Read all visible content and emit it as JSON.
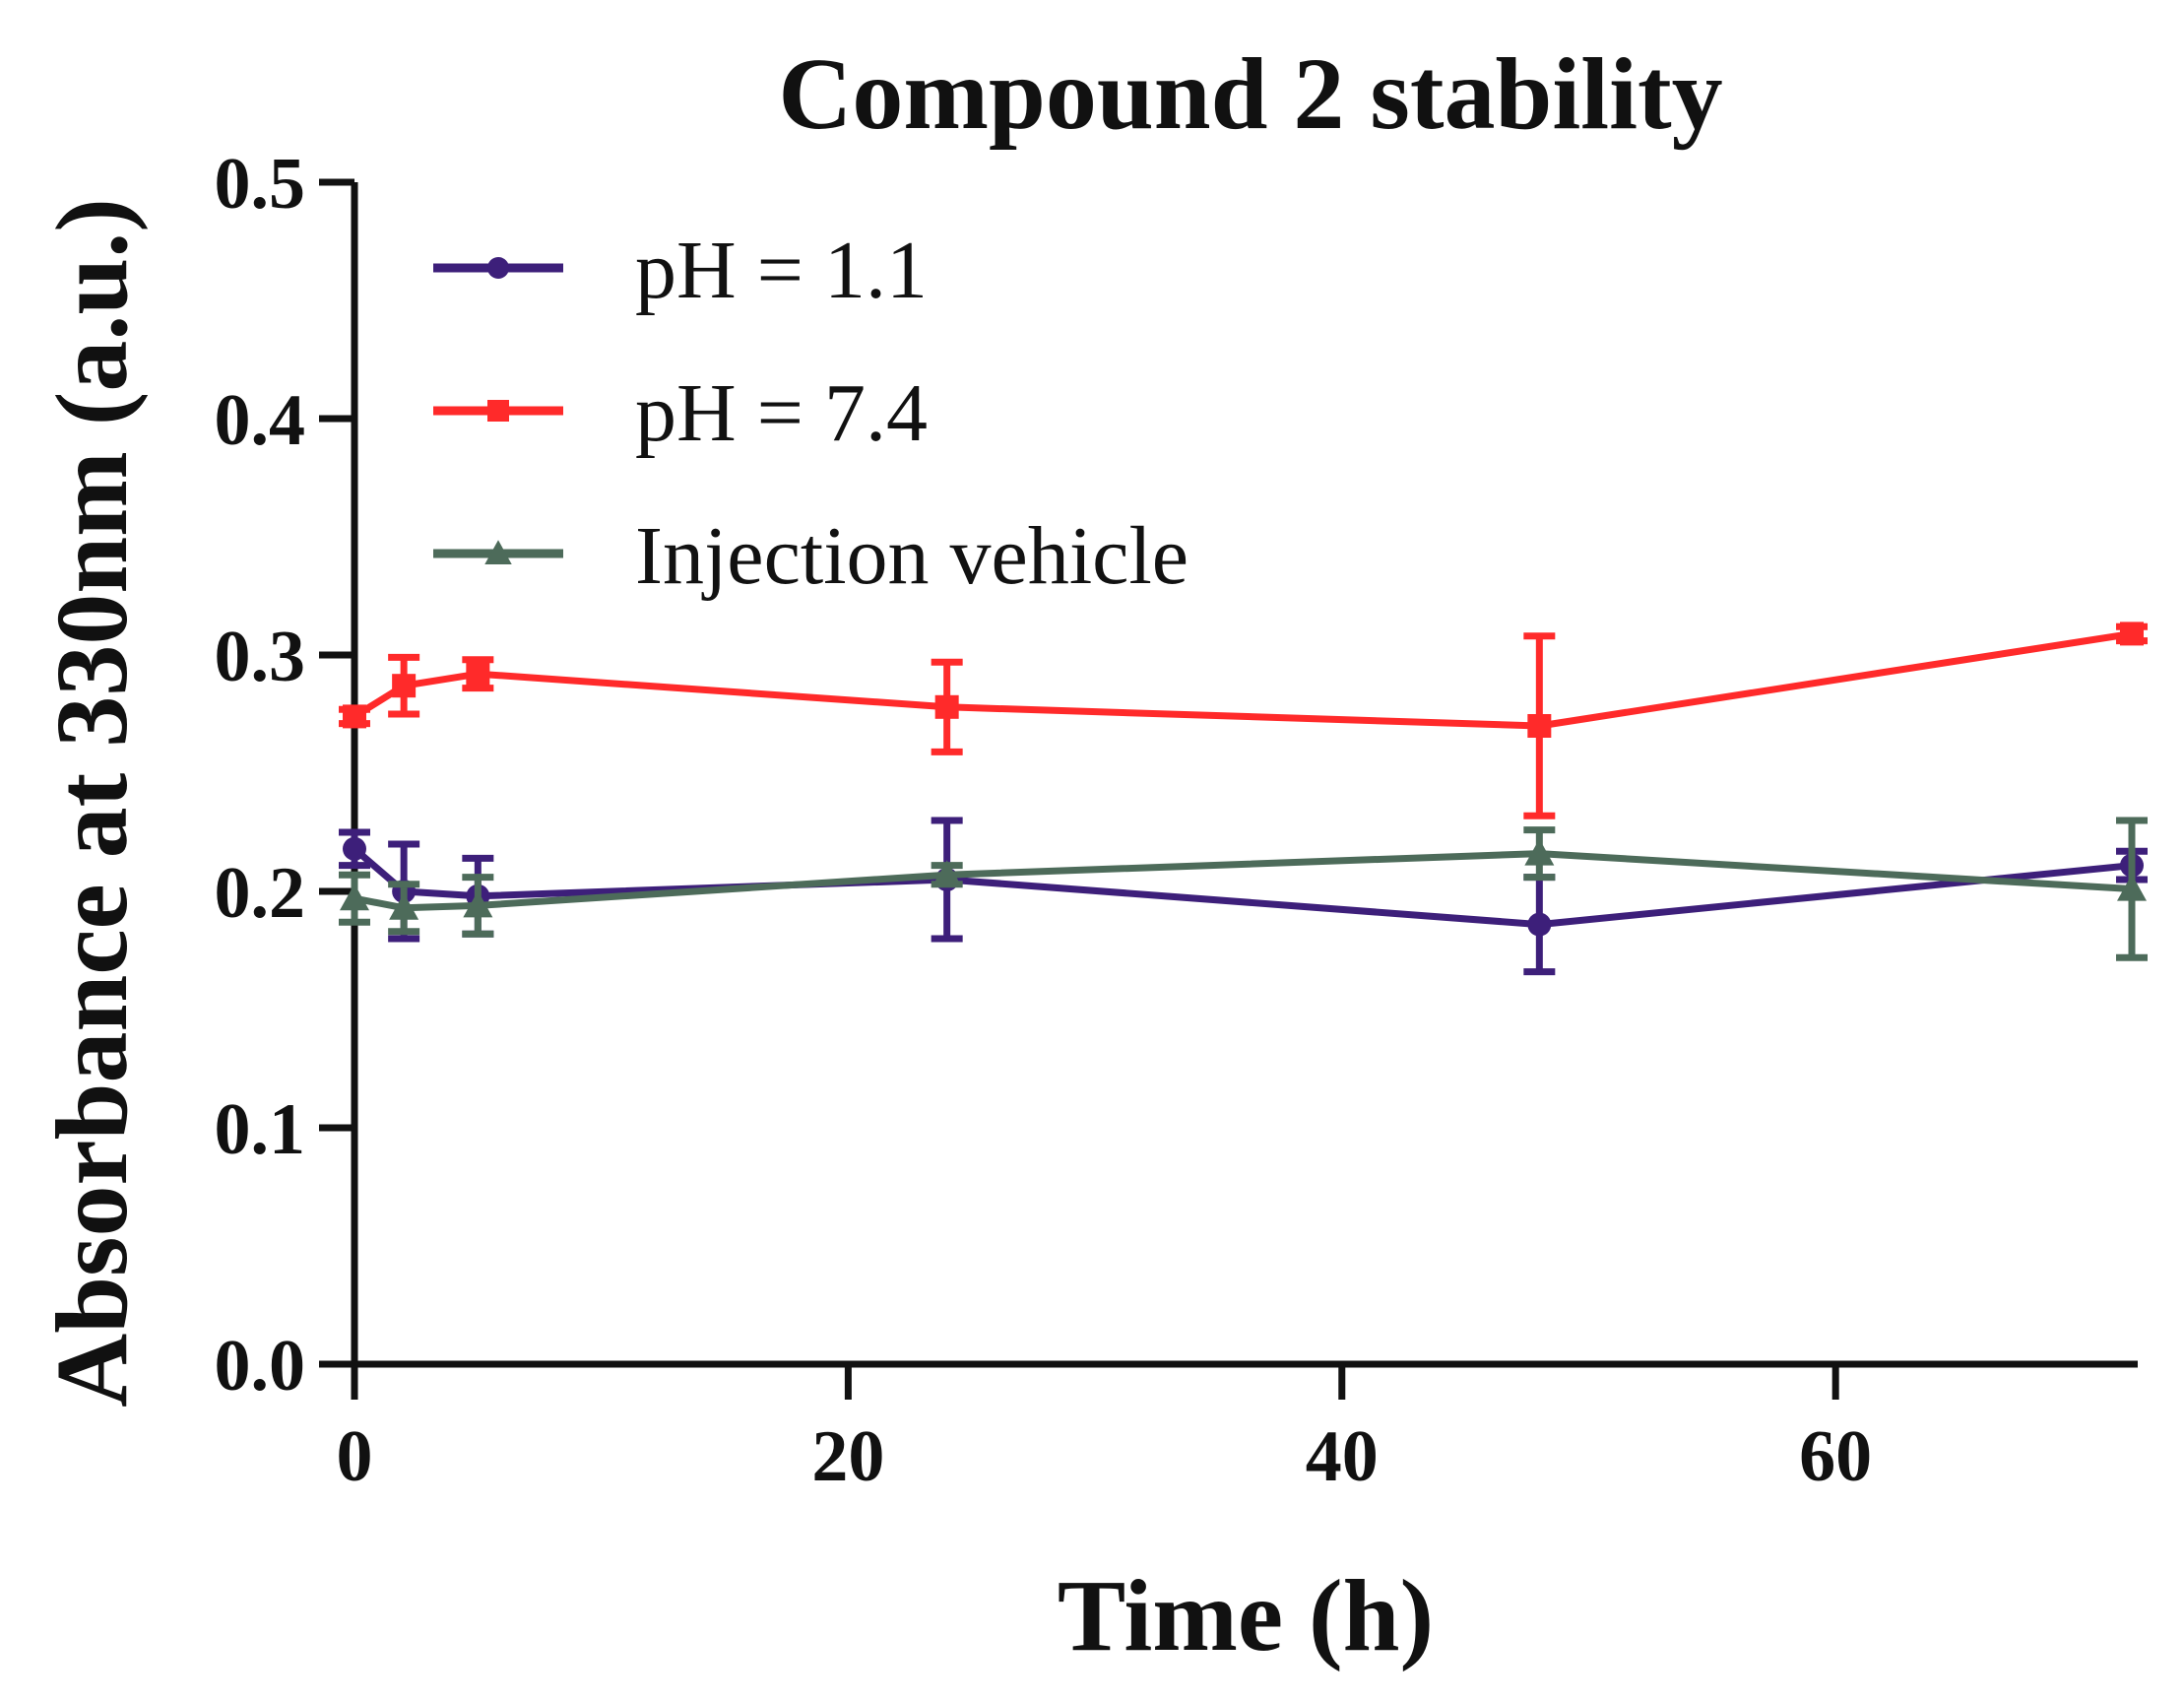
{
  "chart_data": {
    "type": "line",
    "title": "Compound 2 stability",
    "xlabel": "Time (h)",
    "ylabel": "Absorbance at 330nm (a.u.)",
    "xlim": [
      0,
      72
    ],
    "ylim": [
      0,
      0.5
    ],
    "xticks": [
      0,
      20,
      40,
      60
    ],
    "xtick_labels": [
      "0",
      "20",
      "40",
      "60"
    ],
    "yticks": [
      0,
      0.1,
      0.2,
      0.3,
      0.4,
      0.5
    ],
    "ytick_labels": [
      "0.0",
      "0.1",
      "0.2",
      "0.3",
      "0.4",
      "0.5"
    ],
    "grid": false,
    "legend_position": "top-left",
    "x": [
      0,
      2,
      5,
      24,
      48,
      72
    ],
    "series": [
      {
        "name": "pH = 1.1",
        "color": "#3d1f7a",
        "marker": "circle",
        "values": [
          0.218,
          0.2,
          0.198,
          0.205,
          0.186,
          0.211
        ],
        "errors": [
          0.007,
          0.02,
          0.016,
          0.025,
          0.02,
          0.006
        ]
      },
      {
        "name": "pH = 7.4",
        "color": "#ff2a2a",
        "marker": "square",
        "values": [
          0.274,
          0.287,
          0.292,
          0.278,
          0.27,
          0.309
        ],
        "errors": [
          0.003,
          0.012,
          0.006,
          0.019,
          0.038,
          0.003
        ]
      },
      {
        "name": "Injection vehicle",
        "color": "#4d6b5a",
        "marker": "triangle",
        "values": [
          0.197,
          0.193,
          0.194,
          0.207,
          0.216,
          0.201
        ],
        "errors": [
          0.01,
          0.01,
          0.012,
          0.004,
          0.01,
          0.029
        ]
      }
    ]
  }
}
